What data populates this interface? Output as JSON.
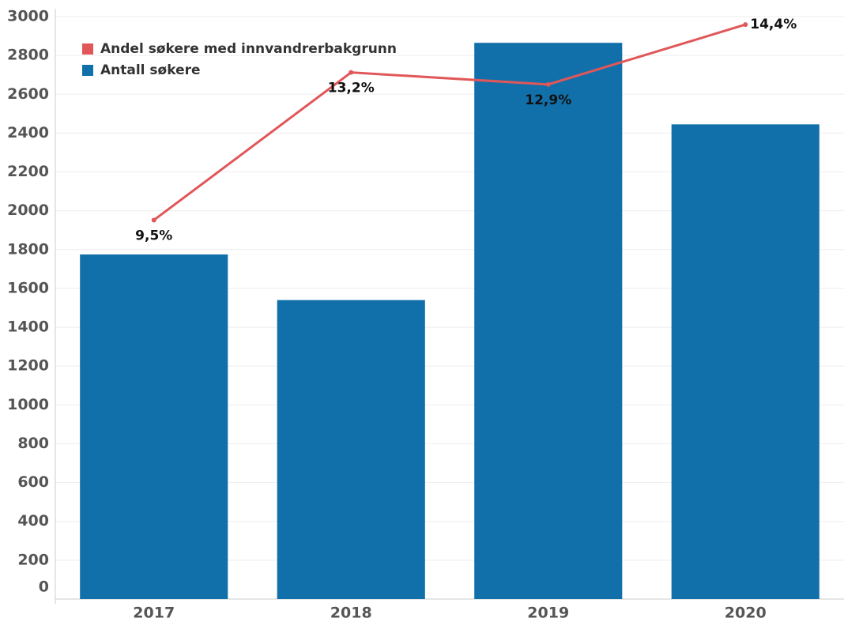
{
  "chart_data": {
    "type": "bar-line",
    "categories": [
      "2017",
      "2018",
      "2019",
      "2020"
    ],
    "series": [
      {
        "name": "Andel søkere med innvandrerbakgrunn",
        "color": "#e15759",
        "type": "line",
        "axis": "y2",
        "values": [
          9.5,
          13.2,
          12.9,
          14.4
        ],
        "value_labels": [
          "9,5%",
          "13,2%",
          "12,9%",
          "14,4%"
        ]
      },
      {
        "name": "Antall søkere",
        "color": "#1170aa",
        "type": "bar",
        "values": [
          1775,
          1540,
          2865,
          2445
        ]
      }
    ],
    "ylim": [
      0,
      3000
    ],
    "yticks": [
      0,
      200,
      400,
      600,
      800,
      1000,
      1200,
      1400,
      1600,
      1800,
      2000,
      2200,
      2400,
      2600,
      2800,
      3000
    ],
    "y2lim": [
      0,
      14.6
    ],
    "grid": true,
    "legend": "top-left"
  }
}
